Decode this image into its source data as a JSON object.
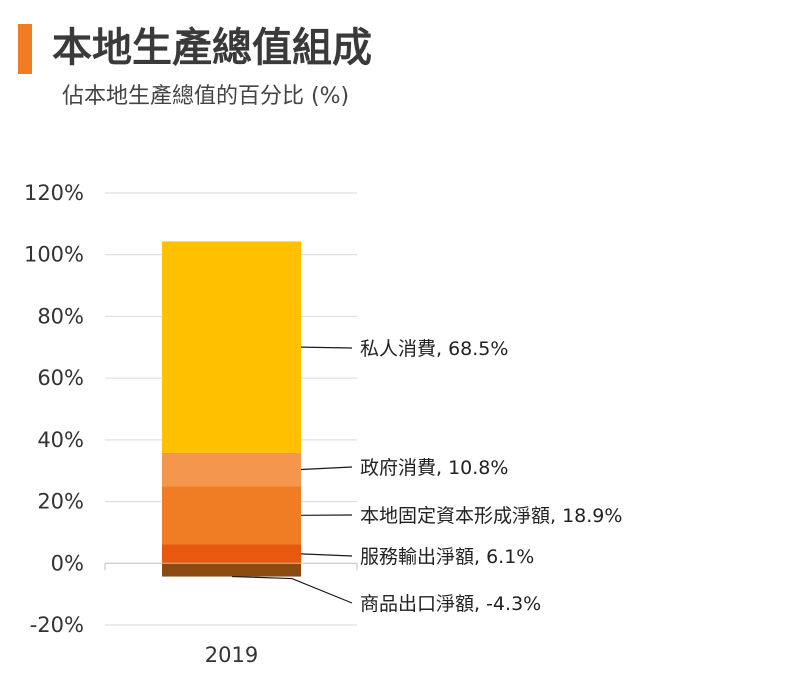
{
  "header": {
    "title": "本地生產總值組成",
    "subtitle": "佔本地生產總值的百分比 (%)"
  },
  "colors": {
    "accent": "#f07c23"
  },
  "chart_data": {
    "type": "bar",
    "stacked": true,
    "categories": [
      "2019"
    ],
    "series": [
      {
        "name": "商品出口淨額",
        "label": "商品出口淨額, -4.3%",
        "values": [
          -4.3
        ],
        "color": "#8b4a12"
      },
      {
        "name": "服務輸出淨額",
        "label": "服務輸出淨額, 6.1%",
        "values": [
          6.1
        ],
        "color": "#e8590f"
      },
      {
        "name": "本地固定資本形成淨額",
        "label": "本地固定資本形成淨額, 18.9%",
        "values": [
          18.9
        ],
        "color": "#f07c23"
      },
      {
        "name": "政府消費",
        "label": "政府消費, 10.8%",
        "values": [
          10.8
        ],
        "color": "#f4974d"
      },
      {
        "name": "私人消費",
        "label": "私人消費, 68.5%",
        "values": [
          68.5
        ],
        "color": "#ffc000"
      }
    ],
    "yticks": [
      "-20%",
      "0%",
      "20%",
      "40%",
      "60%",
      "80%",
      "100%",
      "120%"
    ],
    "ylim": [
      -20,
      120
    ],
    "grid": true
  }
}
